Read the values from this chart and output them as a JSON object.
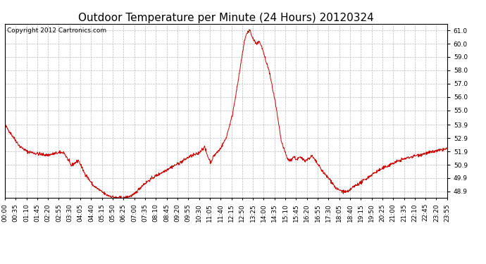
{
  "title": "Outdoor Temperature per Minute (24 Hours) 20120324",
  "copyright_text": "Copyright 2012 Cartronics.com",
  "line_color": "#cc0000",
  "background_color": "#ffffff",
  "grid_color": "#bbbbbb",
  "yticks": [
    48.9,
    49.9,
    50.9,
    51.9,
    52.9,
    53.9,
    55.0,
    56.0,
    57.0,
    58.0,
    59.0,
    60.0,
    61.0
  ],
  "ymin": 48.4,
  "ymax": 61.5,
  "xtick_labels": [
    "00:00",
    "00:35",
    "01:10",
    "01:45",
    "02:20",
    "02:55",
    "03:30",
    "04:05",
    "04:40",
    "05:15",
    "05:50",
    "06:25",
    "07:00",
    "07:35",
    "08:10",
    "08:45",
    "09:20",
    "09:55",
    "10:30",
    "11:05",
    "11:40",
    "12:15",
    "12:50",
    "13:25",
    "14:00",
    "14:35",
    "15:10",
    "15:45",
    "16:20",
    "16:55",
    "17:30",
    "18:05",
    "18:40",
    "19:15",
    "19:50",
    "20:25",
    "21:00",
    "21:35",
    "22:10",
    "22:45",
    "23:20",
    "23:55"
  ],
  "title_fontsize": 11,
  "copyright_fontsize": 6.5,
  "tick_fontsize": 6.5,
  "figwidth": 6.9,
  "figheight": 3.75,
  "dpi": 100
}
